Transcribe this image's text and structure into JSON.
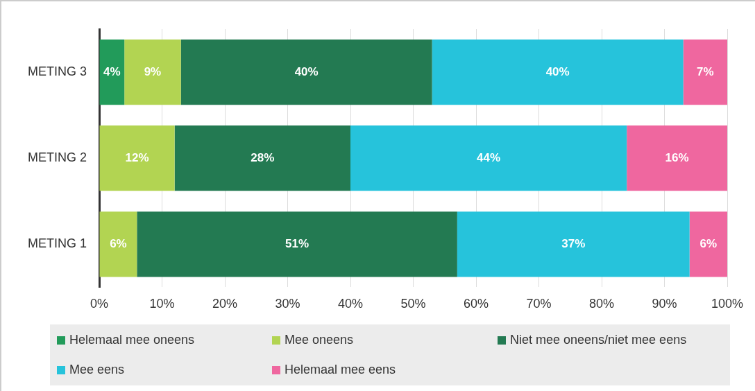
{
  "chart_data": {
    "type": "bar",
    "orientation": "horizontal",
    "stacked": true,
    "categories": [
      "METING 3",
      "METING 2",
      "METING 1"
    ],
    "series": [
      {
        "name": "Helemaal mee oneens",
        "color": "#229b5a",
        "values": [
          4,
          null,
          null
        ],
        "value_labels": [
          "4%",
          null,
          null
        ]
      },
      {
        "name": "Mee oneens",
        "color": "#b2d452",
        "values": [
          9,
          12,
          6
        ],
        "value_labels": [
          "9%",
          "12%",
          "6%"
        ]
      },
      {
        "name": "Niet mee oneens/niet mee eens",
        "color": "#237a52",
        "values": [
          40,
          28,
          51
        ],
        "value_labels": [
          "40%",
          "28%",
          "51%"
        ]
      },
      {
        "name": "Mee eens",
        "color": "#26c3db",
        "values": [
          40,
          44,
          37
        ],
        "value_labels": [
          "40%",
          "44%",
          "37%"
        ]
      },
      {
        "name": "Helemaal mee eens",
        "color": "#ef679f",
        "values": [
          7,
          16,
          6
        ],
        "value_labels": [
          "7%",
          "16%",
          "6%"
        ]
      }
    ],
    "xlim": [
      0,
      100
    ],
    "xticks": [
      {
        "value": 0,
        "label": "0%"
      },
      {
        "value": 10,
        "label": "10%"
      },
      {
        "value": 20,
        "label": "20%"
      },
      {
        "value": 30,
        "label": "30%"
      },
      {
        "value": 40,
        "label": "40%"
      },
      {
        "value": 50,
        "label": "50%"
      },
      {
        "value": 60,
        "label": "60%"
      },
      {
        "value": 70,
        "label": "70%"
      },
      {
        "value": 80,
        "label": "80%"
      },
      {
        "value": 90,
        "label": "90%"
      },
      {
        "value": 100,
        "label": "100%"
      }
    ],
    "grid": "x",
    "legend": "bottom"
  }
}
